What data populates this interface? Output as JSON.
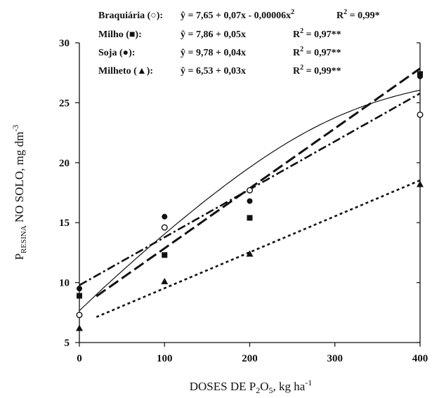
{
  "chart_data": {
    "type": "scatter",
    "xlabel": {
      "main": "DOSES DE P",
      "sub": "2",
      "main2": "O",
      "sub2": "5",
      "unit": ", kg ha",
      "sup": "-1"
    },
    "ylabel": {
      "main": "P",
      "sub": "RESINA",
      "rest": " NO SOLO, mg dm",
      "sup": "-3"
    },
    "xlim": [
      0,
      400
    ],
    "ylim": [
      5,
      30
    ],
    "xticks": [
      "0",
      "100",
      "200",
      "300",
      "400"
    ],
    "yticks": [
      "5",
      "10",
      "15",
      "20",
      "25",
      "30"
    ],
    "grid": false,
    "series": [
      {
        "name": "Braquiária",
        "marker": "○",
        "marker_shape": "circle-open",
        "line_style": "solid",
        "x": [
          0,
          100,
          200,
          400
        ],
        "y": [
          7.3,
          14.6,
          17.7,
          24.0
        ],
        "fit": {
          "a": 7.65,
          "b": 0.07,
          "c": -6e-05
        },
        "equation": "ŷ  = 7,65 + 0,07x  - 0,00006x",
        "equation_sup": "2",
        "r2_label": "R",
        "r2_value": " = 0,99*"
      },
      {
        "name": "Milho",
        "marker": "■",
        "marker_shape": "square",
        "line_style": "long-dash",
        "x": [
          0,
          100,
          200,
          400
        ],
        "y": [
          8.9,
          12.3,
          15.4,
          27.4
        ],
        "fit": {
          "a": 7.86,
          "b": 0.05,
          "c": 0
        },
        "equation": "ŷ  = 7,86 + 0,05x",
        "r2_label": "R",
        "r2_value": " = 0,97**"
      },
      {
        "name": "Soja",
        "marker": "●",
        "marker_shape": "circle",
        "line_style": "dash-dot",
        "x": [
          0,
          100,
          200,
          400
        ],
        "y": [
          9.5,
          15.5,
          16.8,
          27.2
        ],
        "fit": {
          "a": 9.78,
          "b": 0.04,
          "c": 0
        },
        "equation": "ŷ  = 9,78 + 0,04x",
        "r2_label": "R",
        "r2_value": " = 0,97**"
      },
      {
        "name": "Milheto",
        "marker": "▲",
        "marker_shape": "triangle",
        "line_style": "dotted",
        "x": [
          0,
          100,
          200,
          400
        ],
        "y": [
          6.2,
          10.1,
          12.4,
          18.2
        ],
        "fit": {
          "a": 6.53,
          "b": 0.03,
          "c": 0
        },
        "equation": "ŷ  = 6,53 + 0,03x",
        "r2_label": "R",
        "r2_value": " = 0,99**"
      }
    ]
  }
}
